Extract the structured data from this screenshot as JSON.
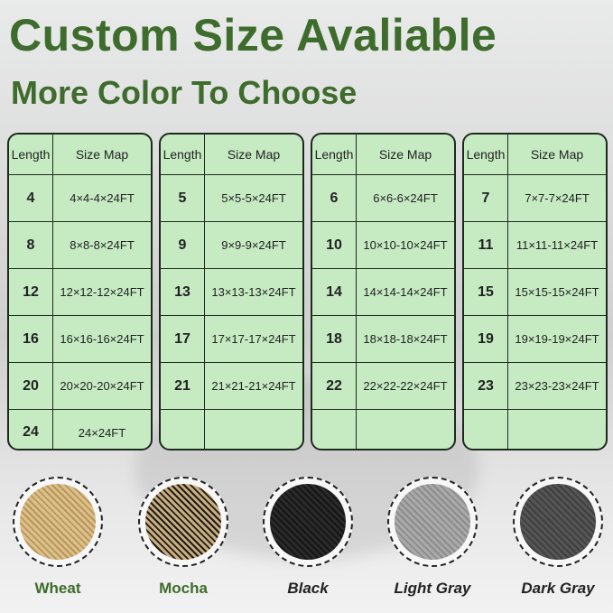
{
  "title": "Custom Size Avaliable",
  "subtitle": "More Color To Choose",
  "table_header": {
    "length": "Length",
    "size_map": "Size Map"
  },
  "tables": [
    {
      "rows": [
        [
          "4",
          "4×4-4×24FT"
        ],
        [
          "8",
          "8×8-8×24FT"
        ],
        [
          "12",
          "12×12-12×24FT"
        ],
        [
          "16",
          "16×16-16×24FT"
        ],
        [
          "20",
          "20×20-20×24FT"
        ],
        [
          "24",
          "24×24FT"
        ]
      ]
    },
    {
      "rows": [
        [
          "5",
          "5×5-5×24FT"
        ],
        [
          "9",
          "9×9-9×24FT"
        ],
        [
          "13",
          "13×13-13×24FT"
        ],
        [
          "17",
          "17×17-17×24FT"
        ],
        [
          "21",
          "21×21-21×24FT"
        ],
        [
          "",
          ""
        ]
      ]
    },
    {
      "rows": [
        [
          "6",
          "6×6-6×24FT"
        ],
        [
          "10",
          "10×10-10×24FT"
        ],
        [
          "14",
          "14×14-14×24FT"
        ],
        [
          "18",
          "18×18-18×24FT"
        ],
        [
          "22",
          "22×22-22×24FT"
        ],
        [
          "",
          ""
        ]
      ]
    },
    {
      "rows": [
        [
          "7",
          "7×7-7×24FT"
        ],
        [
          "11",
          "11×11-11×24FT"
        ],
        [
          "15",
          "15×15-15×24FT"
        ],
        [
          "19",
          "19×19-19×24FT"
        ],
        [
          "23",
          "23×23-23×24FT"
        ],
        [
          "",
          ""
        ]
      ]
    }
  ],
  "colors": [
    {
      "label": "Wheat",
      "swatch": "#dcc08a",
      "dark": "#b8965c",
      "italic": false
    },
    {
      "label": "Mocha",
      "swatch": "#c9ad7d",
      "dark": "#1c1c1c",
      "italic": false
    },
    {
      "label": "Black",
      "swatch": "#2a2a2a",
      "dark": "#151515",
      "italic": true
    },
    {
      "label": "Light Gray",
      "swatch": "#a9a9a9",
      "dark": "#8c8c8c",
      "italic": true
    },
    {
      "label": "Dark Gray",
      "swatch": "#555555",
      "dark": "#3f3f3f",
      "italic": true
    }
  ],
  "accent": "#3e6c2c"
}
